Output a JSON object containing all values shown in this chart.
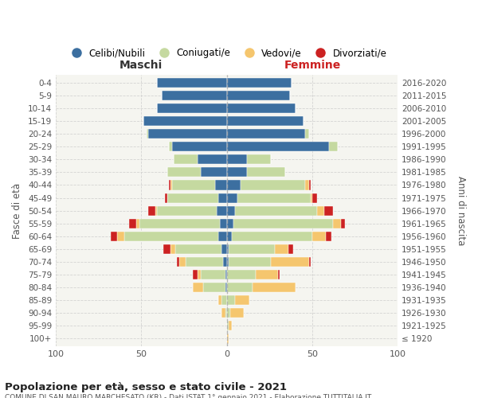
{
  "age_groups": [
    "100+",
    "95-99",
    "90-94",
    "85-89",
    "80-84",
    "75-79",
    "70-74",
    "65-69",
    "60-64",
    "55-59",
    "50-54",
    "45-49",
    "40-44",
    "35-39",
    "30-34",
    "25-29",
    "20-24",
    "15-19",
    "10-14",
    "5-9",
    "0-4"
  ],
  "birth_years": [
    "≤ 1920",
    "1921-1925",
    "1926-1930",
    "1931-1935",
    "1936-1940",
    "1941-1945",
    "1946-1950",
    "1951-1955",
    "1956-1960",
    "1961-1965",
    "1966-1970",
    "1971-1975",
    "1976-1980",
    "1981-1985",
    "1986-1990",
    "1991-1995",
    "1996-2000",
    "2001-2005",
    "2006-2010",
    "2011-2015",
    "2016-2020"
  ],
  "colors": {
    "celibi": "#3c6fa0",
    "coniugati": "#c5d9a0",
    "vedovi": "#f5c66e",
    "divorziati": "#cc2222"
  },
  "males": {
    "celibi": [
      0,
      0,
      0,
      0,
      1,
      1,
      2,
      3,
      5,
      4,
      6,
      5,
      7,
      15,
      17,
      32,
      46,
      49,
      41,
      38,
      41
    ],
    "coniugati": [
      0,
      0,
      1,
      3,
      13,
      14,
      22,
      27,
      55,
      47,
      35,
      30,
      25,
      20,
      14,
      2,
      1,
      0,
      0,
      0,
      0
    ],
    "vedovi": [
      0,
      0,
      2,
      2,
      6,
      2,
      4,
      3,
      4,
      2,
      1,
      0,
      1,
      0,
      0,
      0,
      0,
      0,
      0,
      0,
      0
    ],
    "divorziati": [
      0,
      0,
      0,
      0,
      0,
      3,
      1,
      4,
      4,
      4,
      4,
      1,
      1,
      0,
      0,
      0,
      0,
      0,
      0,
      0,
      0
    ]
  },
  "females": {
    "celibi": [
      0,
      0,
      0,
      0,
      0,
      0,
      1,
      1,
      3,
      4,
      5,
      6,
      8,
      12,
      12,
      60,
      46,
      45,
      40,
      37,
      38
    ],
    "coniugati": [
      0,
      1,
      2,
      5,
      15,
      17,
      25,
      27,
      47,
      58,
      48,
      43,
      38,
      22,
      14,
      5,
      2,
      0,
      0,
      0,
      0
    ],
    "vedovi": [
      1,
      2,
      8,
      8,
      25,
      13,
      22,
      8,
      8,
      5,
      4,
      1,
      2,
      0,
      0,
      0,
      0,
      0,
      0,
      0,
      0
    ],
    "divorziati": [
      0,
      0,
      0,
      0,
      0,
      1,
      1,
      3,
      3,
      2,
      5,
      3,
      1,
      0,
      0,
      0,
      0,
      0,
      0,
      0,
      0
    ]
  },
  "title": "Popolazione per età, sesso e stato civile - 2021",
  "subtitle": "COMUNE DI SAN MAURO MARCHESATO (KR) - Dati ISTAT 1° gennaio 2021 - Elaborazione TUTTITALIA.IT",
  "xlabel_left": "Maschi",
  "xlabel_right": "Femmine",
  "ylabel_left": "Fasce di età",
  "ylabel_right": "Anni di nascita",
  "xlim": 100,
  "background_color": "#ffffff",
  "grid_color": "#cccccc",
  "legend_labels": [
    "Celibi/Nubili",
    "Coniugati/e",
    "Vedovi/e",
    "Divorziati/e"
  ]
}
